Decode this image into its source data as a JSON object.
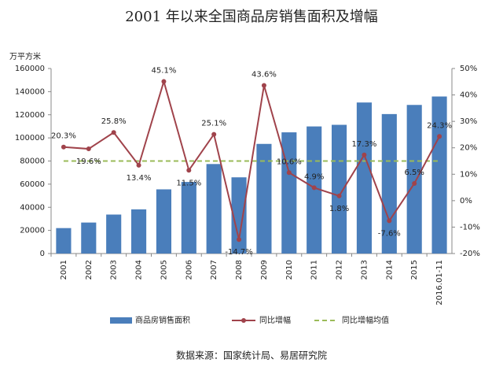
{
  "chart_data": {
    "type": "bar_line",
    "title": "2001 年以来全国商品房销售面积及增幅",
    "y_label": "万平方米",
    "categories": [
      "2001",
      "2002",
      "2003",
      "2004",
      "2005",
      "2006",
      "2007",
      "2008",
      "2009",
      "2010",
      "2011",
      "2012",
      "2013",
      "2014",
      "2015",
      "2016.01-11"
    ],
    "series": [
      {
        "name": "商品房销售面积",
        "color": "#4a7ebb",
        "type": "bar",
        "values": [
          22000,
          26800,
          33700,
          38200,
          55500,
          61900,
          77400,
          65900,
          94800,
          104800,
          109900,
          111300,
          130600,
          120600,
          128500,
          135800
        ]
      },
      {
        "name": "同比增幅",
        "color": "#a0434b",
        "type": "line",
        "axis": "y2",
        "values": [
          20.3,
          19.6,
          25.8,
          13.4,
          45.1,
          11.5,
          25.1,
          -14.7,
          43.6,
          10.6,
          4.9,
          1.8,
          17.3,
          -7.6,
          6.5,
          24.3
        ],
        "value_labels": [
          "20.3%",
          "19.6%",
          "25.8%",
          "13.4%",
          "45.1%",
          "11.5%",
          "25.1%",
          "-14.7%",
          "43.6%",
          "10.6%",
          "4.9%",
          "1.8%",
          "17.3%",
          "-7.6%",
          "6.5%",
          "24.3%"
        ]
      }
    ],
    "average": {
      "name": "同比增幅均值",
      "color": "#9bbb59",
      "value": 15
    },
    "ylim": [
      0,
      160000
    ],
    "yticks": [
      0,
      20000,
      40000,
      60000,
      80000,
      100000,
      120000,
      140000,
      160000
    ],
    "y2lim": [
      -20,
      50
    ],
    "y2ticks": [
      {
        "value": -20,
        "label": "-20%"
      },
      {
        "value": -10,
        "label": "-10%"
      },
      {
        "value": 0,
        "label": "0%"
      },
      {
        "value": 10,
        "label": "10%"
      },
      {
        "value": 20,
        "label": "20%"
      },
      {
        "value": 30,
        "label": "30%"
      },
      {
        "value": 40,
        "label": "40%"
      },
      {
        "value": 50,
        "label": "50%"
      }
    ],
    "source": "数据来源：国家统计局、易居研究院"
  }
}
